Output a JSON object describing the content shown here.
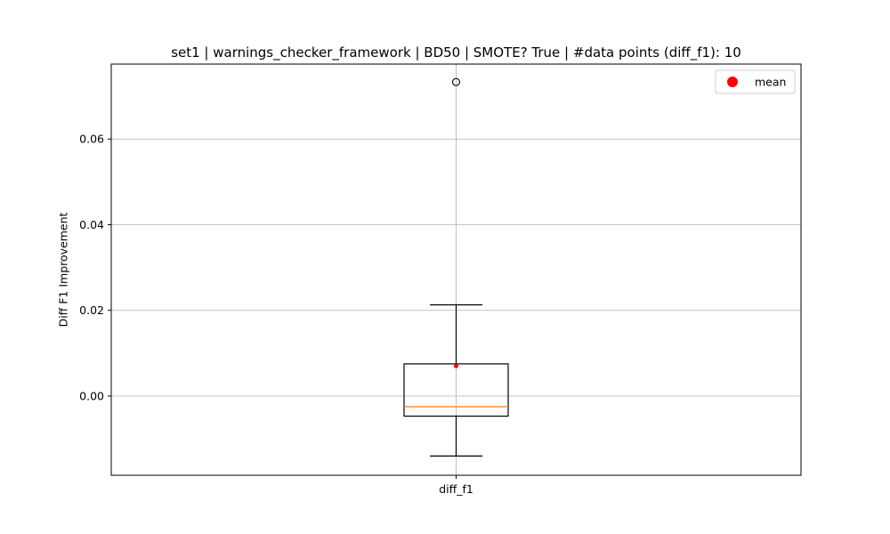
{
  "chart_data": {
    "type": "box",
    "title": "set1 | warnings_checker_framework | BD50 | SMOTE? True | #data points (diff_f1): 10",
    "xlabel": "",
    "ylabel": "Diff F1 Improvement",
    "ylim": [
      -0.0185,
      0.0775
    ],
    "y_ticks": [
      0.0,
      0.02,
      0.04,
      0.06
    ],
    "y_tick_labels": [
      "0.00",
      "0.02",
      "0.04",
      "0.06"
    ],
    "grid": true,
    "categories": [
      "diff_f1"
    ],
    "boxes": [
      {
        "name": "diff_f1",
        "whisker_low": -0.014,
        "q1": -0.0047,
        "median": -0.0025,
        "q3": 0.0075,
        "whisker_high": 0.0213,
        "mean": 0.007,
        "outliers": [
          0.0733
        ]
      }
    ],
    "legend": {
      "position": "top-right",
      "entries": [
        {
          "label": "mean",
          "marker": "red-dot"
        }
      ]
    },
    "colors": {
      "box": "#000000",
      "median": "#ff7f0e",
      "mean": "#ff0000",
      "grid": "#b0b0b0",
      "outlier": "#000000"
    }
  }
}
